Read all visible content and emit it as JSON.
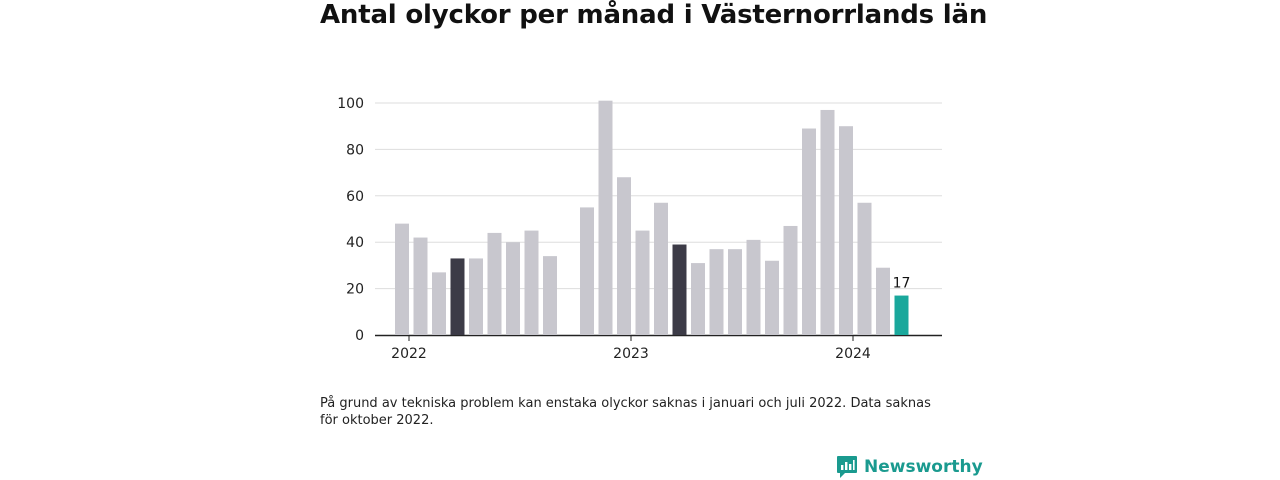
{
  "title": "Antal olyckor per månad i Västernorrlands län",
  "footnote": "På grund av tekniska problem kan enstaka olyckor saknas i januari och juli 2022. Data saknas för oktober 2022.",
  "brand": {
    "name": "Newsworthy",
    "icon": "newsworthy-logo-icon",
    "color": "#1a9a8f"
  },
  "colors": {
    "default": "#c8c7ce",
    "highlight": "#3c3b47",
    "latest": "#1aa89c",
    "grid": "#dddddd",
    "axis": "#222222"
  },
  "chart_data": {
    "type": "bar",
    "title": "Antal olyckor per månad i Västernorrlands län",
    "xlabel": "",
    "ylabel": "",
    "ylim": [
      0,
      100
    ],
    "yticks": [
      "0",
      "20",
      "40",
      "60",
      "80",
      "100"
    ],
    "x_ticks": [
      {
        "label": "2022",
        "month_index": 0
      },
      {
        "label": "2023",
        "month_index": 12
      },
      {
        "label": "2024",
        "month_index": 24
      }
    ],
    "grid": true,
    "series": [
      {
        "months": [
          "2022-01",
          "2022-02",
          "2022-03",
          "2022-04",
          "2022-05",
          "2022-06",
          "2022-07",
          "2022-08",
          "2022-09",
          "2022-10",
          "2022-11",
          "2022-12",
          "2023-01",
          "2023-02",
          "2023-03",
          "2023-04",
          "2023-05",
          "2023-06",
          "2023-07",
          "2023-08",
          "2023-09",
          "2023-10",
          "2023-11",
          "2023-12",
          "2024-01",
          "2024-02",
          "2024-03",
          "2024-04"
        ],
        "values": [
          48,
          42,
          27,
          33,
          33,
          44,
          40,
          45,
          34,
          null,
          55,
          101,
          68,
          45,
          57,
          39,
          31,
          37,
          37,
          41,
          32,
          47,
          89,
          97,
          90,
          57,
          29,
          17
        ],
        "highlight": [
          "2022-04",
          "2023-04"
        ],
        "latest": "2024-04"
      }
    ],
    "annotations": [
      {
        "month": "2024-04",
        "text": "17"
      }
    ]
  }
}
